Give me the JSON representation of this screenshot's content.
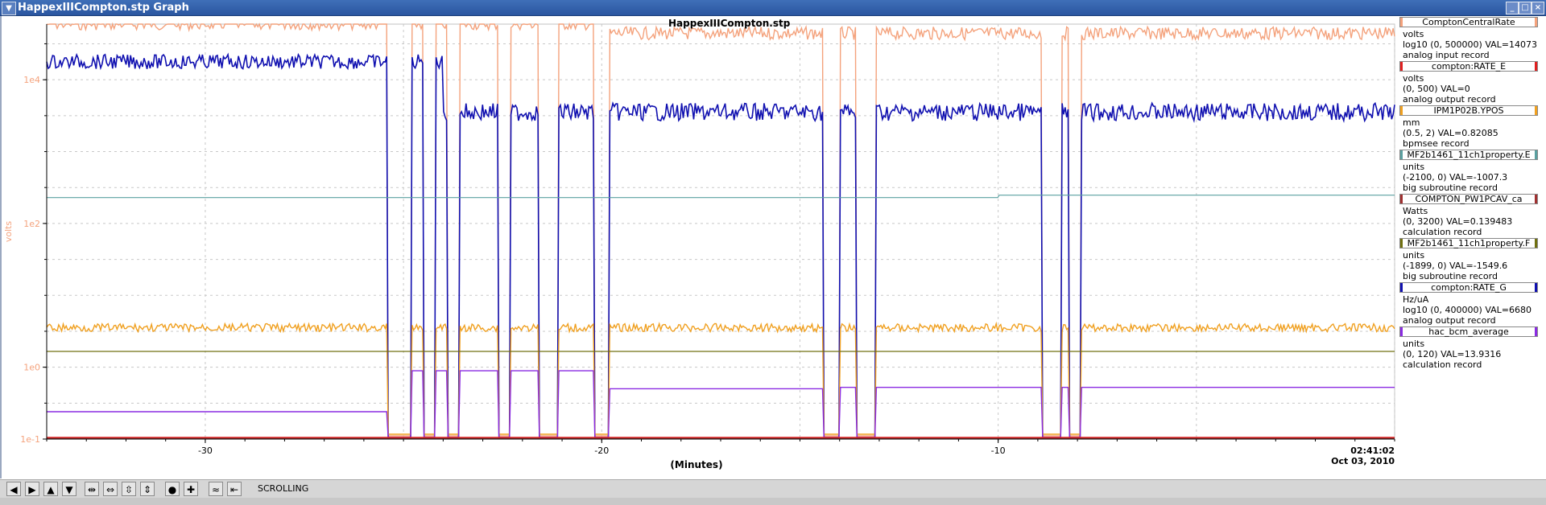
{
  "window": {
    "title": "HappexIIICompton.stp Graph",
    "menu_icon": "chevron-down-icon"
  },
  "chart_data": {
    "type": "line",
    "title": "HappexIIICompton.stp",
    "xlabel": "(Minutes)",
    "ylabel": "volts",
    "x_ticks": [
      -30,
      -20,
      -10
    ],
    "x_range": [
      -34,
      0
    ],
    "y_scale": "log",
    "y_ticks": [
      "1e-1",
      "1e0",
      "1e2",
      "1e4"
    ],
    "timestamp_time": "02:41:02",
    "timestamp_date": "Oct 03, 2010",
    "grid": true,
    "legend_placement": "right",
    "series": [
      {
        "name": "ComptonCentralRate",
        "color": "#f4a27c",
        "units": "volts",
        "range": "log10 (0, 500000) VAL=14073",
        "record": "analog input record"
      },
      {
        "name": "compton:RATE_E",
        "color": "#e02020",
        "units": "volts",
        "range": "(0, 500) VAL=0",
        "record": "analog output record"
      },
      {
        "name": "IPM1P02B.YPOS",
        "color": "#f0a020",
        "units": "mm",
        "range": "(0.5, 2) VAL=0.82085",
        "record": "bpmsee record"
      },
      {
        "name": "MF2b1461_11ch1property.E",
        "color": "#5aa0a0",
        "units": "units",
        "range": "(-2100, 0) VAL=-1007.3",
        "record": "big subroutine record"
      },
      {
        "name": "COMPTON_PW1PCAV_ca",
        "color": "#a03030",
        "units": "Watts",
        "range": "(0, 3200) VAL=0.139483",
        "record": "calculation record"
      },
      {
        "name": "MF2b1461_11ch1property.F",
        "color": "#707010",
        "units": "units",
        "range": "(-1899, 0) VAL=-1549.6",
        "record": "big subroutine record"
      },
      {
        "name": "compton:RATE_G",
        "color": "#1010b0",
        "units": "Hz/uA",
        "range": "log10 (0, 400000) VAL=6680",
        "record": "analog output record"
      },
      {
        "name": "hac_bcm_average",
        "color": "#8a2be2",
        "units": "units",
        "range": "(0, 120) VAL=13.9316",
        "record": "calculation record"
      }
    ]
  },
  "toolbar": {
    "buttons": [
      "arrow-left-icon",
      "arrow-right-icon",
      "arrow-up-icon",
      "arrow-down-icon",
      "expand-x-icon",
      "shrink-x-icon",
      "expand-y-icon",
      "shrink-y-icon",
      "record-icon",
      "plus-icon",
      "wave-icon",
      "jump-end-icon"
    ],
    "mode_label": "SCROLLING"
  }
}
